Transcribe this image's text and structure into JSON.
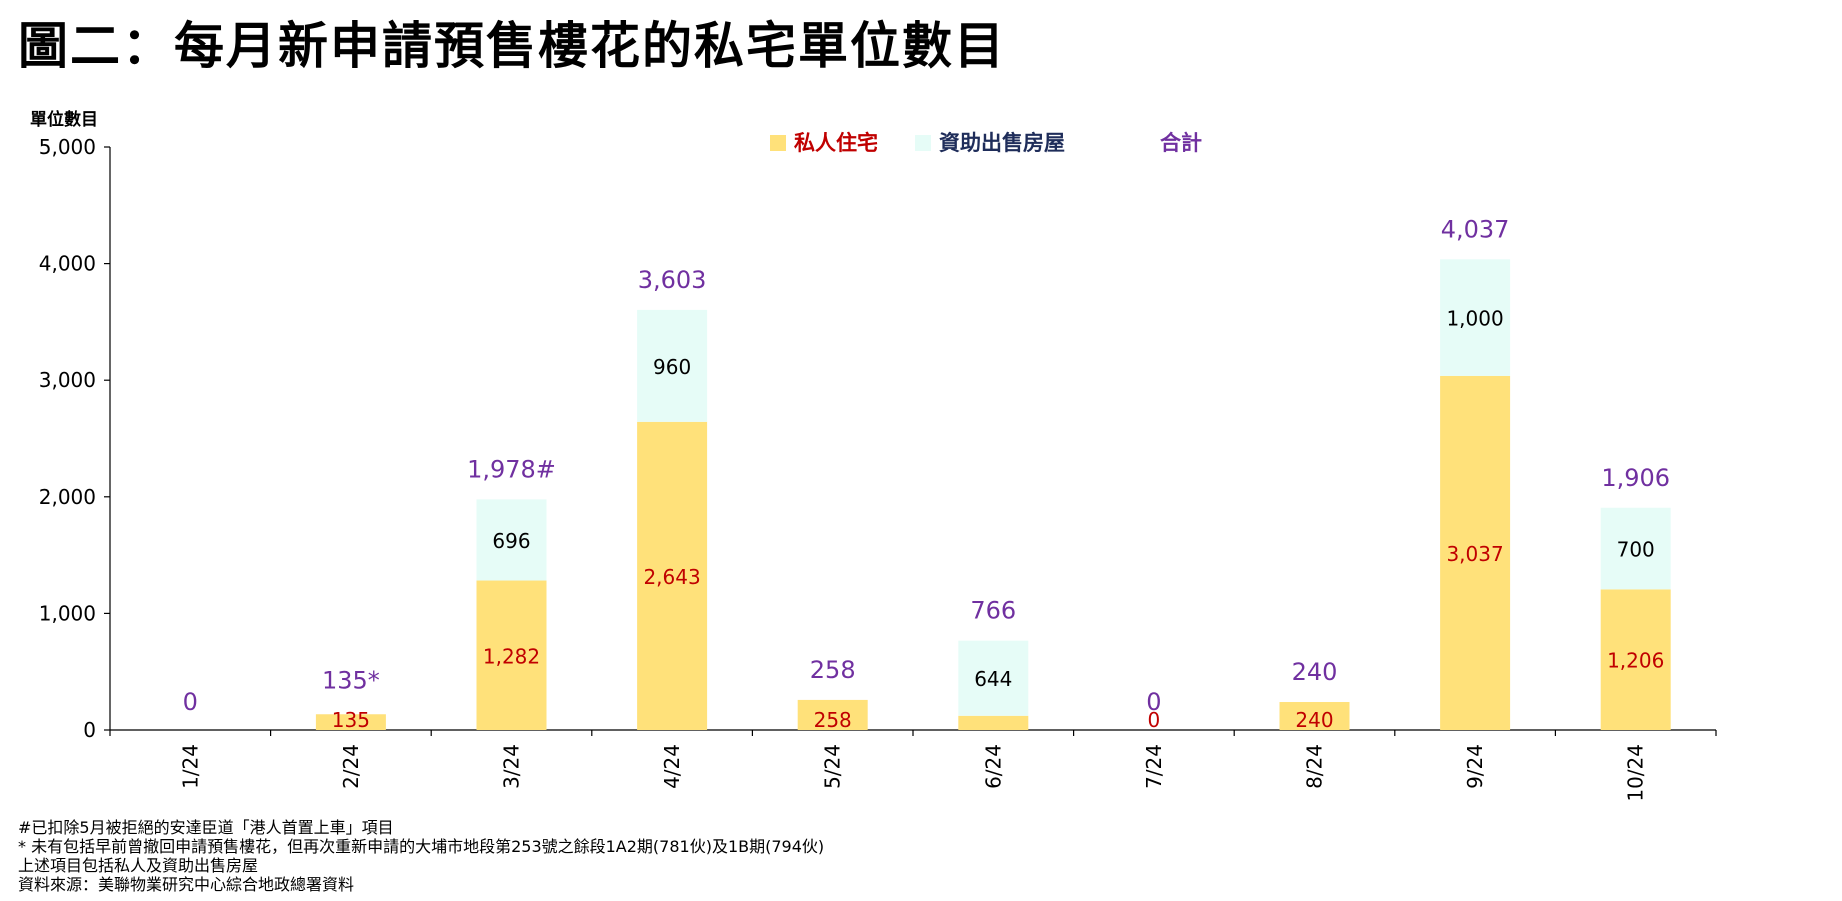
{
  "title": "圖二：每月新申請預售樓花的私宅單位數目",
  "chart_data": {
    "type": "bar",
    "stacked": true,
    "ylabel": "單位數目",
    "ylim": [
      0,
      5000
    ],
    "yticks": [
      "0",
      "1,000",
      "2,000",
      "3,000",
      "4,000",
      "5,000"
    ],
    "ytick_values": [
      0,
      1000,
      2000,
      3000,
      4000,
      5000
    ],
    "categories": [
      "1/24",
      "2/24",
      "3/24",
      "4/24",
      "5/24",
      "6/24",
      "7/24",
      "8/24",
      "9/24",
      "10/24"
    ],
    "series": [
      {
        "name": "私人住宅",
        "color": "#FFE17A",
        "label_color": "#C00000",
        "values": [
          0,
          135,
          1282,
          2643,
          258,
          122,
          0,
          240,
          3037,
          1206
        ],
        "labels": [
          "",
          "135",
          "1,282",
          "2,643",
          "258",
          "",
          "0",
          "240",
          "3,037",
          "1,206"
        ]
      },
      {
        "name": "資助出售房屋",
        "color": "#E6FCF7",
        "label_color": "#000000",
        "values": [
          0,
          0,
          696,
          960,
          0,
          644,
          0,
          0,
          1000,
          700
        ],
        "labels": [
          "",
          "",
          "696",
          "960",
          "",
          "644",
          "",
          "",
          "1,000",
          "700"
        ]
      }
    ],
    "totals": {
      "name": "合計",
      "color": "#7030A0",
      "labels": [
        "0",
        "135*",
        "1,978#",
        "3,603",
        "258",
        "766",
        "0",
        "240",
        "4,037",
        "1,906"
      ]
    },
    "legend": "top-center",
    "grid": false
  },
  "notes": [
    "#已扣除5月被拒絕的安達臣道「港人首置上車」項目",
    "* 未有包括早前曾撤回申請預售樓花，但再次重新申請的大埔市地段第253號之餘段1A2期(781伙)及1B期(794伙)",
    "上述項目包括私人及資助出售房屋",
    "資料來源：美聯物業研究中心綜合地政總署資料"
  ]
}
